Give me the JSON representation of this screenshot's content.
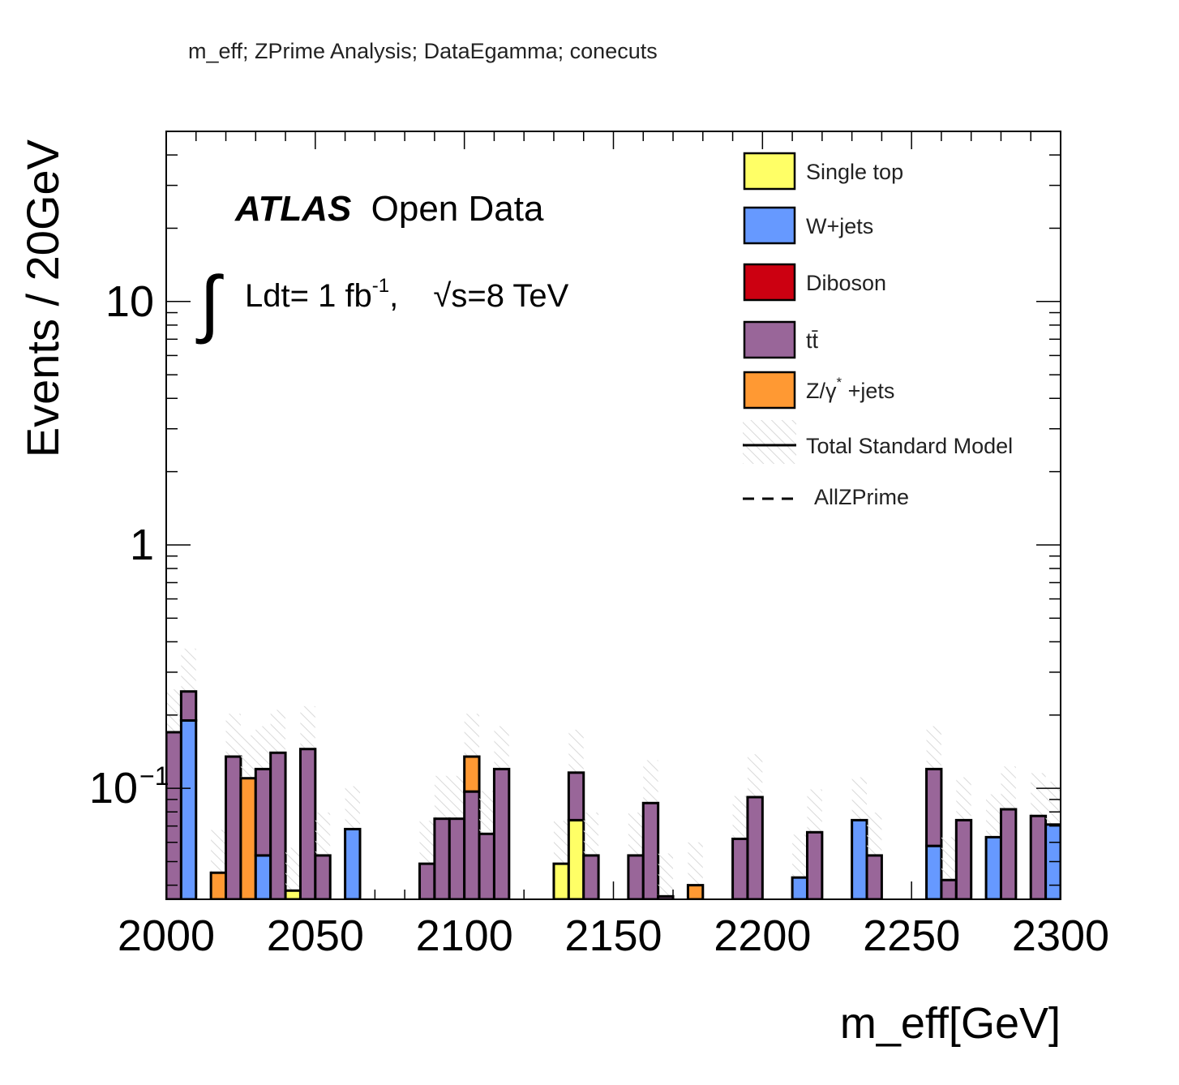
{
  "chart_data": {
    "type": "bar",
    "stacked": true,
    "title": "m_eff; ZPrime Analysis; DataEgamma; conecuts",
    "xlabel": "m_eff[GeV]",
    "ylabel": "Events / 20GeV",
    "xlim": [
      2000,
      2300
    ],
    "ylim": [
      0.035,
      50
    ],
    "y_scale": "log",
    "bin_width": 5,
    "x_ticks": [
      "2000",
      "2050",
      "2100",
      "2150",
      "2200",
      "2250",
      "2300"
    ],
    "y_ticks": [
      {
        "value": 10,
        "label": "10"
      },
      {
        "value": 1,
        "label": "1"
      },
      {
        "value": 0.1,
        "label": "10",
        "exponent": "−1"
      }
    ],
    "atlas_label": {
      "bold": "ATLAS",
      "normal": "Open Data"
    },
    "lumi_label": {
      "integral": "∫",
      "text": "Ldt= 1 fb",
      "sup": "-1",
      "comma": ",",
      "sqrt_s": "√s=8 TeV"
    },
    "legend": {
      "position": "top-right",
      "entries": [
        {
          "label": "Single top",
          "color": "#ffff66",
          "kind": "box"
        },
        {
          "label": "W+jets",
          "color": "#6699ff",
          "kind": "box"
        },
        {
          "label": "Diboson",
          "color": "#cc0011",
          "kind": "box"
        },
        {
          "label": "tt̄",
          "color": "#996699",
          "kind": "box"
        },
        {
          "label": "Z/γ",
          "sup": "*",
          "suffix": " +jets",
          "color": "#ff9933",
          "kind": "box"
        },
        {
          "label": "Total Standard Model",
          "kind": "line"
        },
        {
          "label": "AllZPrime",
          "kind": "dashed"
        }
      ]
    },
    "bins": [
      {
        "x": 2000,
        "segments": [
          {
            "series": "tt̄",
            "value": 0.17
          }
        ]
      },
      {
        "x": 2005,
        "segments": [
          {
            "series": "W+jets",
            "value": 0.19
          },
          {
            "series": "tt̄",
            "value": 0.06
          }
        ]
      },
      {
        "x": 2015,
        "segments": [
          {
            "series": "Z/γ* +jets",
            "value": 0.045
          }
        ]
      },
      {
        "x": 2020,
        "segments": [
          {
            "series": "tt̄",
            "value": 0.135
          }
        ]
      },
      {
        "x": 2025,
        "segments": [
          {
            "series": "Z/γ* +jets",
            "value": 0.11
          }
        ]
      },
      {
        "x": 2030,
        "segments": [
          {
            "series": "W+jets",
            "value": 0.053
          },
          {
            "series": "tt̄",
            "value": 0.067
          }
        ]
      },
      {
        "x": 2035,
        "segments": [
          {
            "series": "tt̄",
            "value": 0.14
          }
        ]
      },
      {
        "x": 2040,
        "segments": [
          {
            "series": "Single top",
            "value": 0.038
          }
        ]
      },
      {
        "x": 2045,
        "segments": [
          {
            "series": "tt̄",
            "value": 0.145
          }
        ]
      },
      {
        "x": 2050,
        "segments": [
          {
            "series": "tt̄",
            "value": 0.053
          }
        ]
      },
      {
        "x": 2060,
        "segments": [
          {
            "series": "W+jets",
            "value": 0.068
          }
        ]
      },
      {
        "x": 2085,
        "segments": [
          {
            "series": "tt̄",
            "value": 0.049
          }
        ]
      },
      {
        "x": 2090,
        "segments": [
          {
            "series": "tt̄",
            "value": 0.075
          }
        ]
      },
      {
        "x": 2095,
        "segments": [
          {
            "series": "tt̄",
            "value": 0.075
          }
        ]
      },
      {
        "x": 2100,
        "segments": [
          {
            "series": "tt̄",
            "value": 0.097
          },
          {
            "series": "Z/γ* +jets",
            "value": 0.038
          }
        ]
      },
      {
        "x": 2105,
        "segments": [
          {
            "series": "tt̄",
            "value": 0.065
          }
        ]
      },
      {
        "x": 2110,
        "segments": [
          {
            "series": "tt̄",
            "value": 0.12
          }
        ]
      },
      {
        "x": 2130,
        "segments": [
          {
            "series": "Single top",
            "value": 0.049
          }
        ]
      },
      {
        "x": 2135,
        "segments": [
          {
            "series": "Single top",
            "value": 0.074
          },
          {
            "series": "tt̄",
            "value": 0.042
          }
        ]
      },
      {
        "x": 2140,
        "segments": [
          {
            "series": "tt̄",
            "value": 0.053
          }
        ]
      },
      {
        "x": 2155,
        "segments": [
          {
            "series": "tt̄",
            "value": 0.053
          }
        ]
      },
      {
        "x": 2160,
        "segments": [
          {
            "series": "tt̄",
            "value": 0.087
          }
        ]
      },
      {
        "x": 2165,
        "segments": [
          {
            "series": "tt̄",
            "value": 0.036
          }
        ]
      },
      {
        "x": 2175,
        "segments": [
          {
            "series": "Z/γ* +jets",
            "value": 0.04
          }
        ]
      },
      {
        "x": 2190,
        "segments": [
          {
            "series": "tt̄",
            "value": 0.062
          }
        ]
      },
      {
        "x": 2195,
        "segments": [
          {
            "series": "tt̄",
            "value": 0.092
          }
        ]
      },
      {
        "x": 2210,
        "segments": [
          {
            "series": "W+jets",
            "value": 0.043
          }
        ]
      },
      {
        "x": 2215,
        "segments": [
          {
            "series": "tt̄",
            "value": 0.066
          }
        ]
      },
      {
        "x": 2230,
        "segments": [
          {
            "series": "W+jets",
            "value": 0.074
          }
        ]
      },
      {
        "x": 2235,
        "segments": [
          {
            "series": "tt̄",
            "value": 0.053
          }
        ]
      },
      {
        "x": 2255,
        "segments": [
          {
            "series": "W+jets",
            "value": 0.058
          },
          {
            "series": "tt̄",
            "value": 0.062
          }
        ]
      },
      {
        "x": 2260,
        "segments": [
          {
            "series": "tt̄",
            "value": 0.042
          }
        ]
      },
      {
        "x": 2265,
        "segments": [
          {
            "series": "tt̄",
            "value": 0.074
          }
        ]
      },
      {
        "x": 2275,
        "segments": [
          {
            "series": "W+jets",
            "value": 0.063
          }
        ]
      },
      {
        "x": 2280,
        "segments": [
          {
            "series": "tt̄",
            "value": 0.082
          }
        ]
      },
      {
        "x": 2290,
        "segments": [
          {
            "series": "tt̄",
            "value": 0.077
          }
        ]
      },
      {
        "x": 2295,
        "segments": [
          {
            "series": "W+jets",
            "value": 0.071
          }
        ]
      }
    ]
  }
}
